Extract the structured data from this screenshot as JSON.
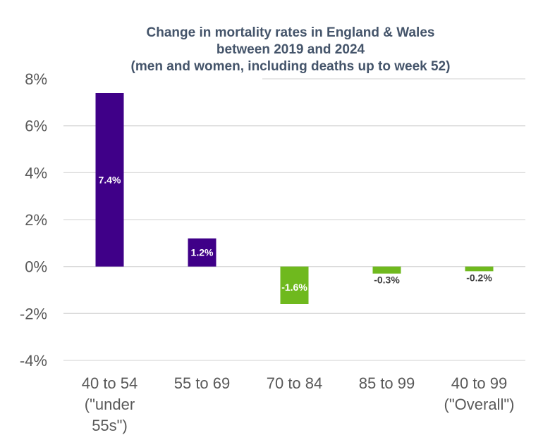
{
  "chart_data": {
    "type": "bar",
    "title": [
      "Change in mortality rates in England & Wales",
      "between 2019 and 2024",
      "(men and women, including deaths up to week 52)"
    ],
    "xlabel": "",
    "ylabel": "",
    "categories": [
      [
        "40 to 54",
        "(\"under",
        "55s\")"
      ],
      [
        "55 to 69"
      ],
      [
        "70 to 84"
      ],
      [
        "85 to 99"
      ],
      [
        "40 to 99",
        "(\"Overall\")"
      ]
    ],
    "values": [
      7.4,
      1.2,
      -1.6,
      -0.3,
      -0.2
    ],
    "data_labels": [
      "7.4%",
      "1.2%",
      "-1.6%",
      "-0.3%",
      "-0.2%"
    ],
    "ylim": [
      -4,
      8
    ],
    "yticks": [
      8,
      6,
      4,
      2,
      0,
      -2,
      -4
    ],
    "ytick_labels": [
      "8%",
      "6%",
      "4%",
      "2%",
      "0%",
      "-2%",
      "-4%"
    ],
    "grid": true,
    "legend": "none",
    "colors": {
      "positive": "#3f0088",
      "negative": "#6fb91e",
      "label_inside": "#ffffff",
      "label_outside": "#404040",
      "title": "#44546a",
      "axis_text": "#595959",
      "grid": "#d9d9d9"
    }
  }
}
